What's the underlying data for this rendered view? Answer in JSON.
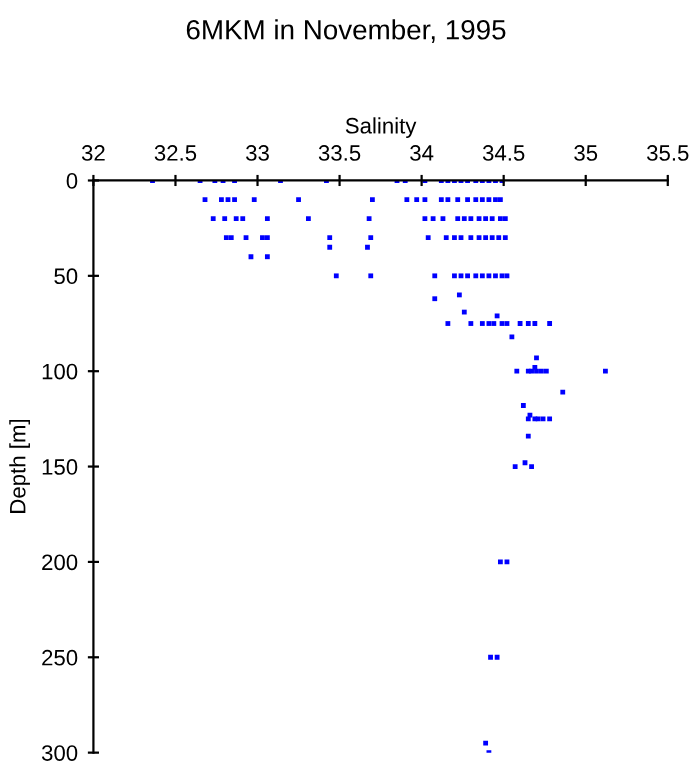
{
  "chart_data": {
    "type": "scatter",
    "title": "6MKM in November, 1995",
    "xlabel": "Salinity",
    "ylabel": "Depth [m]",
    "xlim": [
      32,
      35.5
    ],
    "xticks": [
      32,
      32.5,
      33,
      33.5,
      34,
      34.5,
      35,
      35.5
    ],
    "ylim": [
      300,
      0
    ],
    "yticks": [
      0,
      50,
      100,
      150,
      200,
      250,
      300
    ],
    "grid": false,
    "marker": "square",
    "series": [
      {
        "color": "#0000ff",
        "x": [
          32.36,
          32.65,
          32.74,
          32.79,
          32.86,
          33.14,
          33.42,
          33.85,
          33.9,
          34.02,
          34.12,
          34.16,
          34.2,
          34.24,
          34.28,
          34.33,
          34.37,
          34.41,
          34.45,
          34.49,
          32.68,
          32.78,
          32.82,
          32.86,
          32.98,
          33.25,
          33.7,
          33.91,
          33.97,
          34.02,
          34.12,
          34.16,
          34.22,
          34.28,
          34.33,
          34.37,
          34.41,
          34.45,
          34.48,
          32.73,
          32.8,
          32.87,
          32.91,
          33.06,
          33.31,
          33.68,
          34.02,
          34.07,
          34.13,
          34.22,
          34.26,
          34.3,
          34.35,
          34.39,
          34.43,
          34.48,
          34.51,
          32.81,
          32.84,
          32.93,
          33.03,
          33.06,
          33.44,
          33.69,
          34.04,
          34.15,
          34.2,
          34.24,
          34.3,
          34.35,
          34.39,
          34.43,
          34.47,
          34.51,
          33.44,
          33.67,
          32.96,
          33.06,
          33.48,
          33.69,
          34.08,
          34.2,
          34.24,
          34.28,
          34.33,
          34.37,
          34.41,
          34.45,
          34.49,
          34.52,
          34.08,
          34.23,
          34.26,
          34.46,
          34.16,
          34.3,
          34.37,
          34.41,
          34.44,
          34.49,
          34.52,
          34.6,
          34.65,
          34.69,
          34.78,
          34.55,
          34.7,
          34.69,
          34.58,
          34.65,
          34.67,
          34.7,
          34.73,
          34.76,
          35.12,
          34.86,
          34.62,
          34.66,
          34.65,
          34.69,
          34.71,
          34.74,
          34.78,
          34.65,
          34.63,
          34.57,
          34.67,
          34.48,
          34.52,
          34.42,
          34.46,
          34.39,
          34.41
        ],
        "values": [
          0,
          0,
          0,
          0,
          0,
          0,
          0,
          0,
          0,
          0,
          0,
          0,
          0,
          0,
          0,
          0,
          0,
          0,
          0,
          0,
          10,
          10,
          10,
          10,
          10,
          10,
          10,
          10,
          10,
          10,
          10,
          10,
          10,
          10,
          10,
          10,
          10,
          10,
          10,
          20,
          20,
          20,
          20,
          20,
          20,
          20,
          20,
          20,
          20,
          20,
          20,
          20,
          20,
          20,
          20,
          20,
          20,
          30,
          30,
          30,
          30,
          30,
          30,
          30,
          30,
          30,
          30,
          30,
          30,
          30,
          30,
          30,
          30,
          30,
          35,
          35,
          40,
          40,
          50,
          50,
          50,
          50,
          50,
          50,
          50,
          50,
          50,
          50,
          50,
          50,
          62,
          60,
          69,
          71,
          75,
          75,
          75,
          75,
          75,
          75,
          75,
          75,
          75,
          75,
          75,
          82,
          93,
          98,
          100,
          100,
          100,
          100,
          100,
          100,
          100,
          111,
          118,
          123,
          125,
          125,
          125,
          125,
          125,
          134,
          148,
          150,
          150,
          200,
          200,
          250,
          250,
          295,
          300
        ]
      }
    ]
  }
}
